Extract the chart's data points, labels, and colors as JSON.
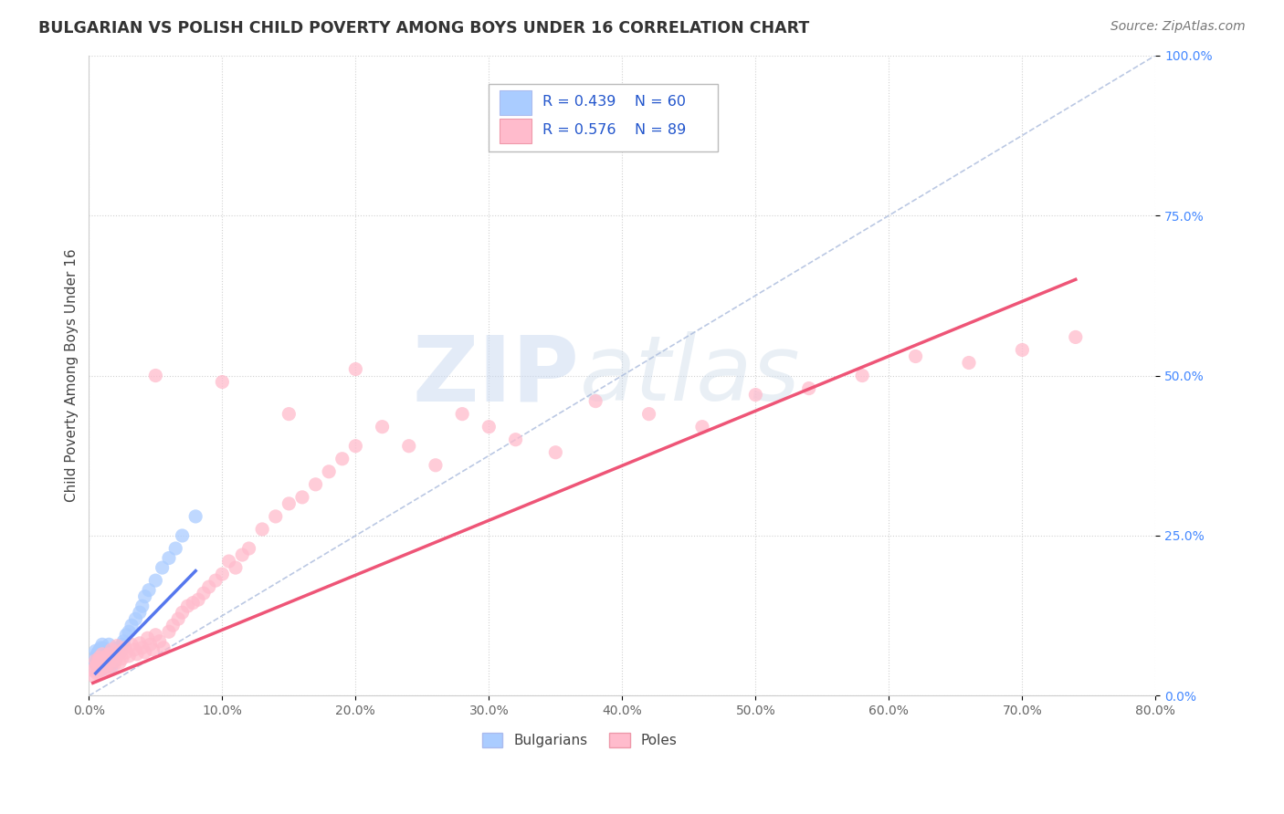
{
  "title": "BULGARIAN VS POLISH CHILD POVERTY AMONG BOYS UNDER 16 CORRELATION CHART",
  "source": "Source: ZipAtlas.com",
  "ylabel_label": "Child Poverty Among Boys Under 16",
  "legend_label1": "Bulgarians",
  "legend_label2": "Poles",
  "legend_R1": "R = 0.439",
  "legend_N1": "N = 60",
  "legend_R2": "R = 0.576",
  "legend_N2": "N = 89",
  "color_bulgarian": "#aaccff",
  "color_polish": "#ffbbcc",
  "color_trendline_bulgarian": "#5577ee",
  "color_trendline_polish": "#ee5577",
  "color_diagonal": "#aabbdd",
  "watermark_zip": "ZIP",
  "watermark_atlas": "atlas",
  "bg_color": "#ffffff",
  "xlim": [
    0.0,
    0.8
  ],
  "ylim": [
    0.0,
    1.0
  ],
  "xticks": [
    0.0,
    0.1,
    0.2,
    0.3,
    0.4,
    0.5,
    0.6,
    0.7,
    0.8
  ],
  "yticks": [
    0.0,
    0.25,
    0.5,
    0.75,
    1.0
  ],
  "bulg_x": [
    0.005,
    0.005,
    0.005,
    0.006,
    0.006,
    0.007,
    0.007,
    0.007,
    0.008,
    0.008,
    0.008,
    0.009,
    0.009,
    0.009,
    0.009,
    0.01,
    0.01,
    0.01,
    0.011,
    0.011,
    0.011,
    0.012,
    0.012,
    0.012,
    0.013,
    0.013,
    0.014,
    0.014,
    0.015,
    0.015,
    0.015,
    0.016,
    0.016,
    0.017,
    0.017,
    0.018,
    0.018,
    0.019,
    0.02,
    0.02,
    0.021,
    0.022,
    0.023,
    0.024,
    0.025,
    0.026,
    0.028,
    0.03,
    0.032,
    0.035,
    0.038,
    0.04,
    0.042,
    0.045,
    0.05,
    0.055,
    0.06,
    0.065,
    0.07,
    0.08
  ],
  "bulg_y": [
    0.05,
    0.06,
    0.07,
    0.055,
    0.065,
    0.045,
    0.058,
    0.068,
    0.048,
    0.06,
    0.072,
    0.052,
    0.063,
    0.075,
    0.04,
    0.055,
    0.067,
    0.08,
    0.05,
    0.062,
    0.074,
    0.045,
    0.057,
    0.07,
    0.052,
    0.065,
    0.048,
    0.06,
    0.055,
    0.068,
    0.08,
    0.05,
    0.063,
    0.046,
    0.058,
    0.053,
    0.066,
    0.06,
    0.058,
    0.07,
    0.065,
    0.075,
    0.068,
    0.072,
    0.08,
    0.085,
    0.095,
    0.1,
    0.11,
    0.12,
    0.13,
    0.14,
    0.155,
    0.165,
    0.18,
    0.2,
    0.215,
    0.23,
    0.25,
    0.28
  ],
  "poles_x": [
    0.003,
    0.004,
    0.005,
    0.005,
    0.006,
    0.006,
    0.007,
    0.007,
    0.008,
    0.008,
    0.009,
    0.01,
    0.01,
    0.011,
    0.012,
    0.012,
    0.013,
    0.014,
    0.015,
    0.015,
    0.016,
    0.017,
    0.018,
    0.019,
    0.02,
    0.021,
    0.022,
    0.023,
    0.024,
    0.025,
    0.027,
    0.028,
    0.03,
    0.032,
    0.034,
    0.036,
    0.038,
    0.04,
    0.042,
    0.044,
    0.046,
    0.048,
    0.05,
    0.053,
    0.056,
    0.06,
    0.063,
    0.067,
    0.07,
    0.074,
    0.078,
    0.082,
    0.086,
    0.09,
    0.095,
    0.1,
    0.105,
    0.11,
    0.115,
    0.12,
    0.13,
    0.14,
    0.15,
    0.16,
    0.17,
    0.18,
    0.19,
    0.2,
    0.22,
    0.24,
    0.26,
    0.28,
    0.3,
    0.32,
    0.35,
    0.38,
    0.42,
    0.46,
    0.5,
    0.54,
    0.58,
    0.62,
    0.66,
    0.7,
    0.74,
    0.05,
    0.1,
    0.15,
    0.2
  ],
  "poles_y": [
    0.04,
    0.03,
    0.045,
    0.055,
    0.035,
    0.05,
    0.038,
    0.055,
    0.042,
    0.06,
    0.048,
    0.045,
    0.065,
    0.052,
    0.038,
    0.058,
    0.062,
    0.048,
    0.042,
    0.065,
    0.055,
    0.072,
    0.06,
    0.048,
    0.055,
    0.078,
    0.065,
    0.052,
    0.07,
    0.058,
    0.075,
    0.068,
    0.062,
    0.08,
    0.072,
    0.065,
    0.082,
    0.075,
    0.068,
    0.09,
    0.08,
    0.072,
    0.095,
    0.085,
    0.075,
    0.1,
    0.11,
    0.12,
    0.13,
    0.14,
    0.145,
    0.15,
    0.16,
    0.17,
    0.18,
    0.19,
    0.21,
    0.2,
    0.22,
    0.23,
    0.26,
    0.28,
    0.3,
    0.31,
    0.33,
    0.35,
    0.37,
    0.39,
    0.42,
    0.39,
    0.36,
    0.44,
    0.42,
    0.4,
    0.38,
    0.46,
    0.44,
    0.42,
    0.47,
    0.48,
    0.5,
    0.53,
    0.52,
    0.54,
    0.56,
    0.5,
    0.49,
    0.44,
    0.51
  ],
  "bulg_trend_x": [
    0.005,
    0.08
  ],
  "bulg_trend_y": [
    0.035,
    0.195
  ],
  "poles_trend_x": [
    0.003,
    0.74
  ],
  "poles_trend_y": [
    0.02,
    0.65
  ]
}
